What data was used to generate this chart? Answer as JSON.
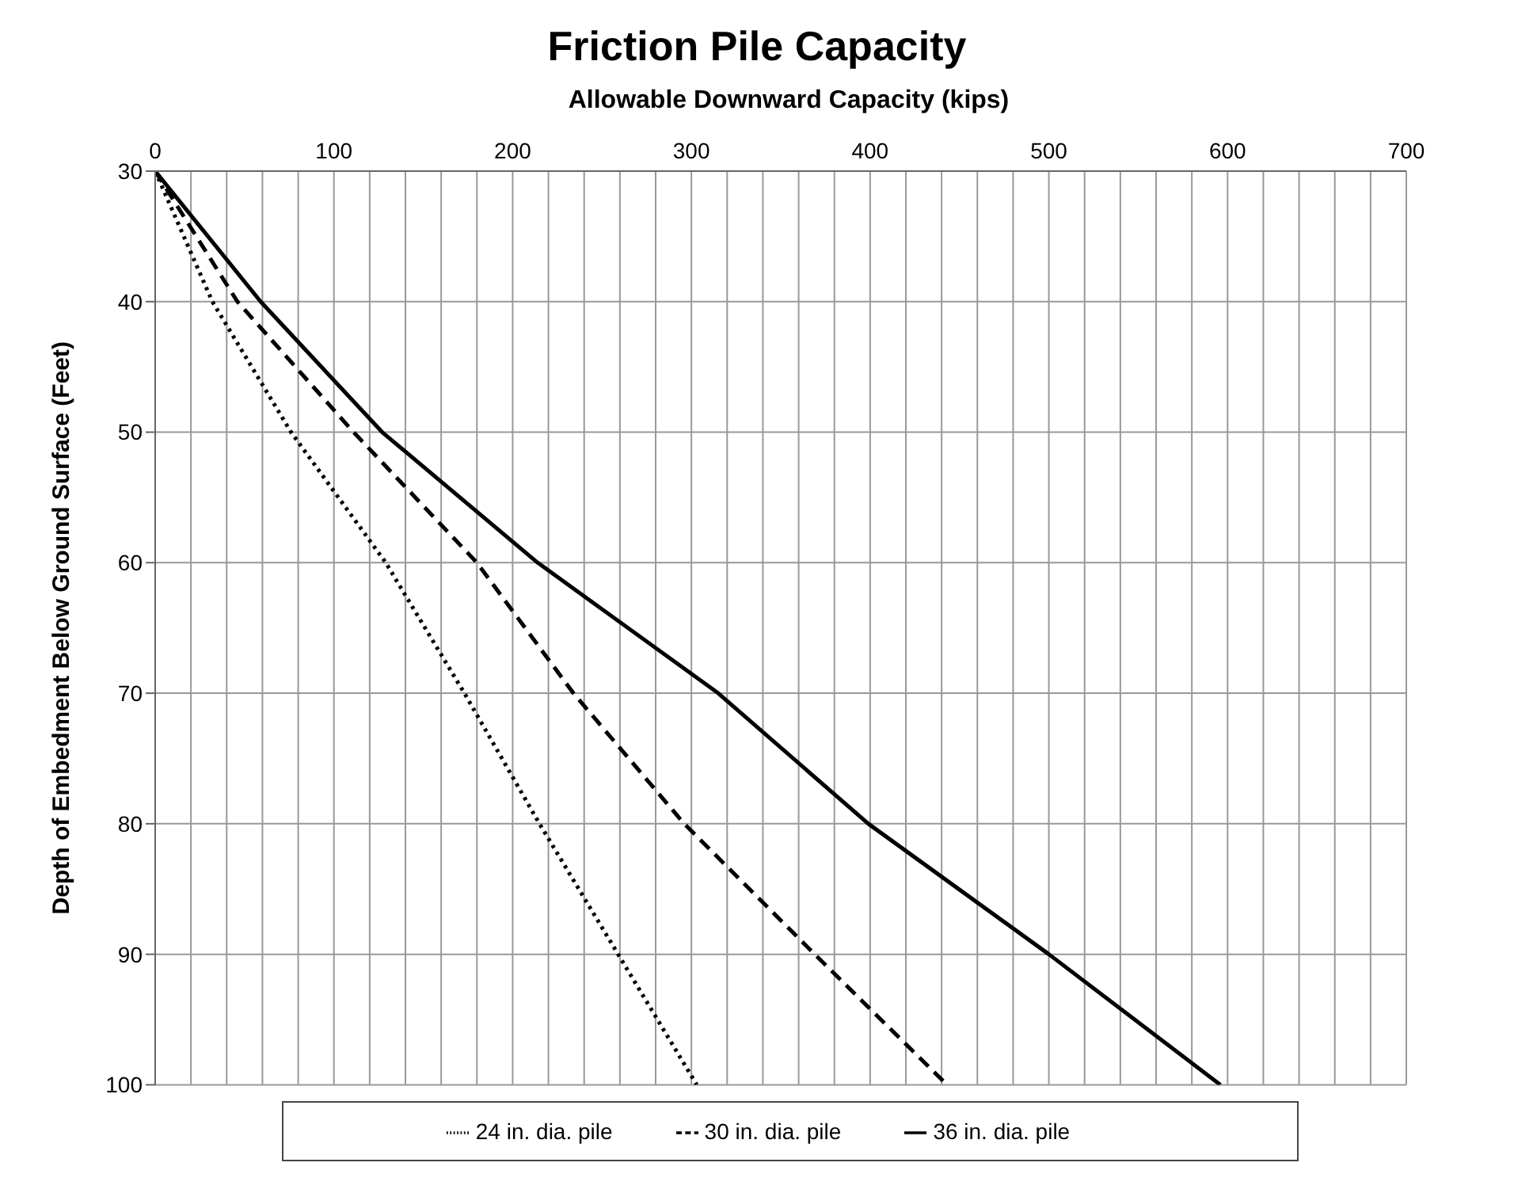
{
  "chart_data": {
    "type": "line",
    "title": "Friction Pile Capacity",
    "xlabel": "Allowable  Downward Capacity  (kips)",
    "ylabel": "Depth of Embedment Below  Ground Surface (Feet)",
    "xlim": [
      0,
      700
    ],
    "xticks": [
      0,
      {
        "value": 20,
        "label": null
      },
      {
        "value": 40,
        "label": null
      },
      {
        "value": 60,
        "label": null
      },
      {
        "value": 80,
        "label": null
      },
      100,
      {
        "value": 120,
        "label": null
      },
      {
        "value": 140,
        "label": null
      },
      {
        "value": 160,
        "label": null
      },
      {
        "value": 180,
        "label": null
      },
      200,
      {
        "value": 220,
        "label": null
      },
      {
        "value": 240,
        "label": null
      },
      {
        "value": 260,
        "label": null
      },
      {
        "value": 280,
        "label": null
      },
      300,
      {
        "value": 320,
        "label": null
      },
      {
        "value": 340,
        "label": null
      },
      {
        "value": 360,
        "label": null
      },
      {
        "value": 380,
        "label": null
      },
      400,
      {
        "value": 420,
        "label": null
      },
      {
        "value": 440,
        "label": null
      },
      {
        "value": 460,
        "label": null
      },
      {
        "value": 480,
        "label": null
      },
      500,
      {
        "value": 520,
        "label": null
      },
      {
        "value": 540,
        "label": null
      },
      {
        "value": 560,
        "label": null
      },
      {
        "value": 580,
        "label": null
      },
      600,
      {
        "value": 620,
        "label": null
      },
      {
        "value": 640,
        "label": null
      },
      {
        "value": 660,
        "label": null
      },
      {
        "value": 680,
        "label": null
      },
      700
    ],
    "ylim": [
      100,
      30
    ],
    "yticks": [
      30,
      40,
      50,
      60,
      70,
      80,
      90,
      100
    ],
    "grid": true,
    "legend": "bottom",
    "marker": "none",
    "series": [
      {
        "name": "24  in. dia. pile",
        "color": "#000000",
        "line_style": "dotted",
        "x": [
          0,
          32,
          76,
          129,
          173,
          215,
          259,
          303
        ],
        "values": [
          30,
          40,
          50,
          60,
          70,
          80,
          90,
          100
        ]
      },
      {
        "name": "30  in. dia. pile",
        "color": "#000000",
        "line_style": "dashed",
        "x": [
          0,
          46,
          111,
          180,
          234,
          296,
          369,
          443
        ],
        "values": [
          30,
          40,
          50,
          60,
          70,
          80,
          90,
          100
        ]
      },
      {
        "name": "36  in. dia. pile",
        "color": "#000000",
        "line_style": "solid",
        "x": [
          0,
          59,
          127,
          214,
          315,
          399,
          500,
          596
        ],
        "values": [
          30,
          40,
          50,
          60,
          70,
          80,
          90,
          100
        ]
      }
    ]
  }
}
